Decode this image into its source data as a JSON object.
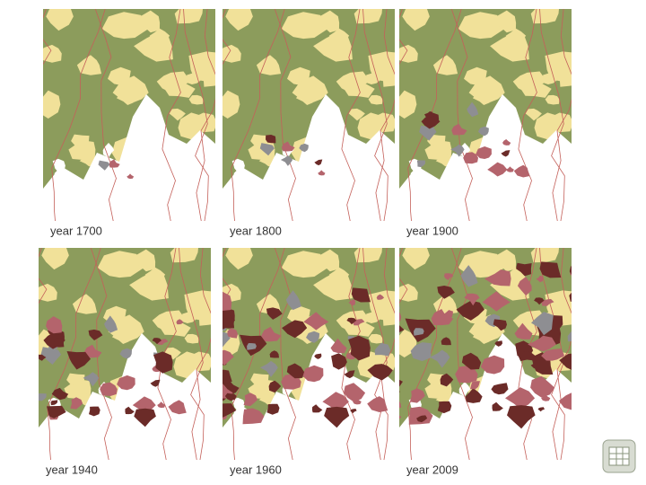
{
  "panels": [
    {
      "caption": "year 1700"
    },
    {
      "caption": "year 1800"
    },
    {
      "caption": "year 1900"
    },
    {
      "caption": "year 1940"
    },
    {
      "caption": "year 1960"
    },
    {
      "caption": "year 2009"
    }
  ]
}
